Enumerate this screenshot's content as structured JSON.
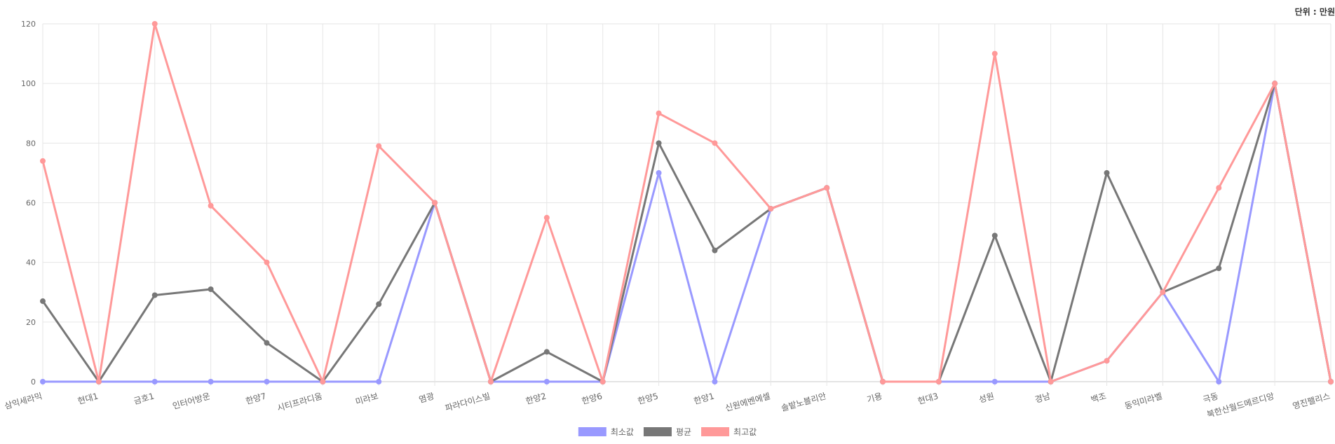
{
  "unit_label": "단위 : 만원",
  "chart_data": {
    "type": "line",
    "categories": [
      "삼익세라믹",
      "현대1",
      "금호1",
      "인터어방운",
      "한양7",
      "시티프라디움",
      "미라보",
      "염광",
      "파라다이스빌",
      "한양2",
      "한양6",
      "한양5",
      "한양1",
      "신원에벤에셀",
      "솔밭노블리안",
      "기용",
      "현대3",
      "성원",
      "경남",
      "백조",
      "동익미라벨",
      "극동",
      "북한산월드메르디앙",
      "영진팰리스"
    ],
    "ylim": [
      0,
      120
    ],
    "yticks": [
      0,
      20,
      40,
      60,
      80,
      100,
      120
    ],
    "grid": true,
    "legend_position": "bottom",
    "series": [
      {
        "name": "최소값",
        "color": "#9999ff",
        "values": [
          0,
          0,
          0,
          0,
          0,
          0,
          0,
          60,
          0,
          0,
          0,
          70,
          0,
          58,
          65,
          0,
          0,
          0,
          0,
          7,
          30,
          0,
          100,
          0
        ]
      },
      {
        "name": "평균",
        "color": "#777777",
        "values": [
          27,
          0,
          29,
          31,
          13,
          0,
          26,
          60,
          0,
          10,
          0,
          80,
          44,
          58,
          65,
          0,
          0,
          49,
          0,
          70,
          30,
          38,
          100,
          0
        ]
      },
      {
        "name": "최고값",
        "color": "#ff9999",
        "values": [
          74,
          0,
          120,
          59,
          40,
          0,
          79,
          60,
          0,
          55,
          0,
          90,
          80,
          58,
          65,
          0,
          0,
          110,
          0,
          7,
          30,
          65,
          100,
          0
        ]
      }
    ]
  }
}
